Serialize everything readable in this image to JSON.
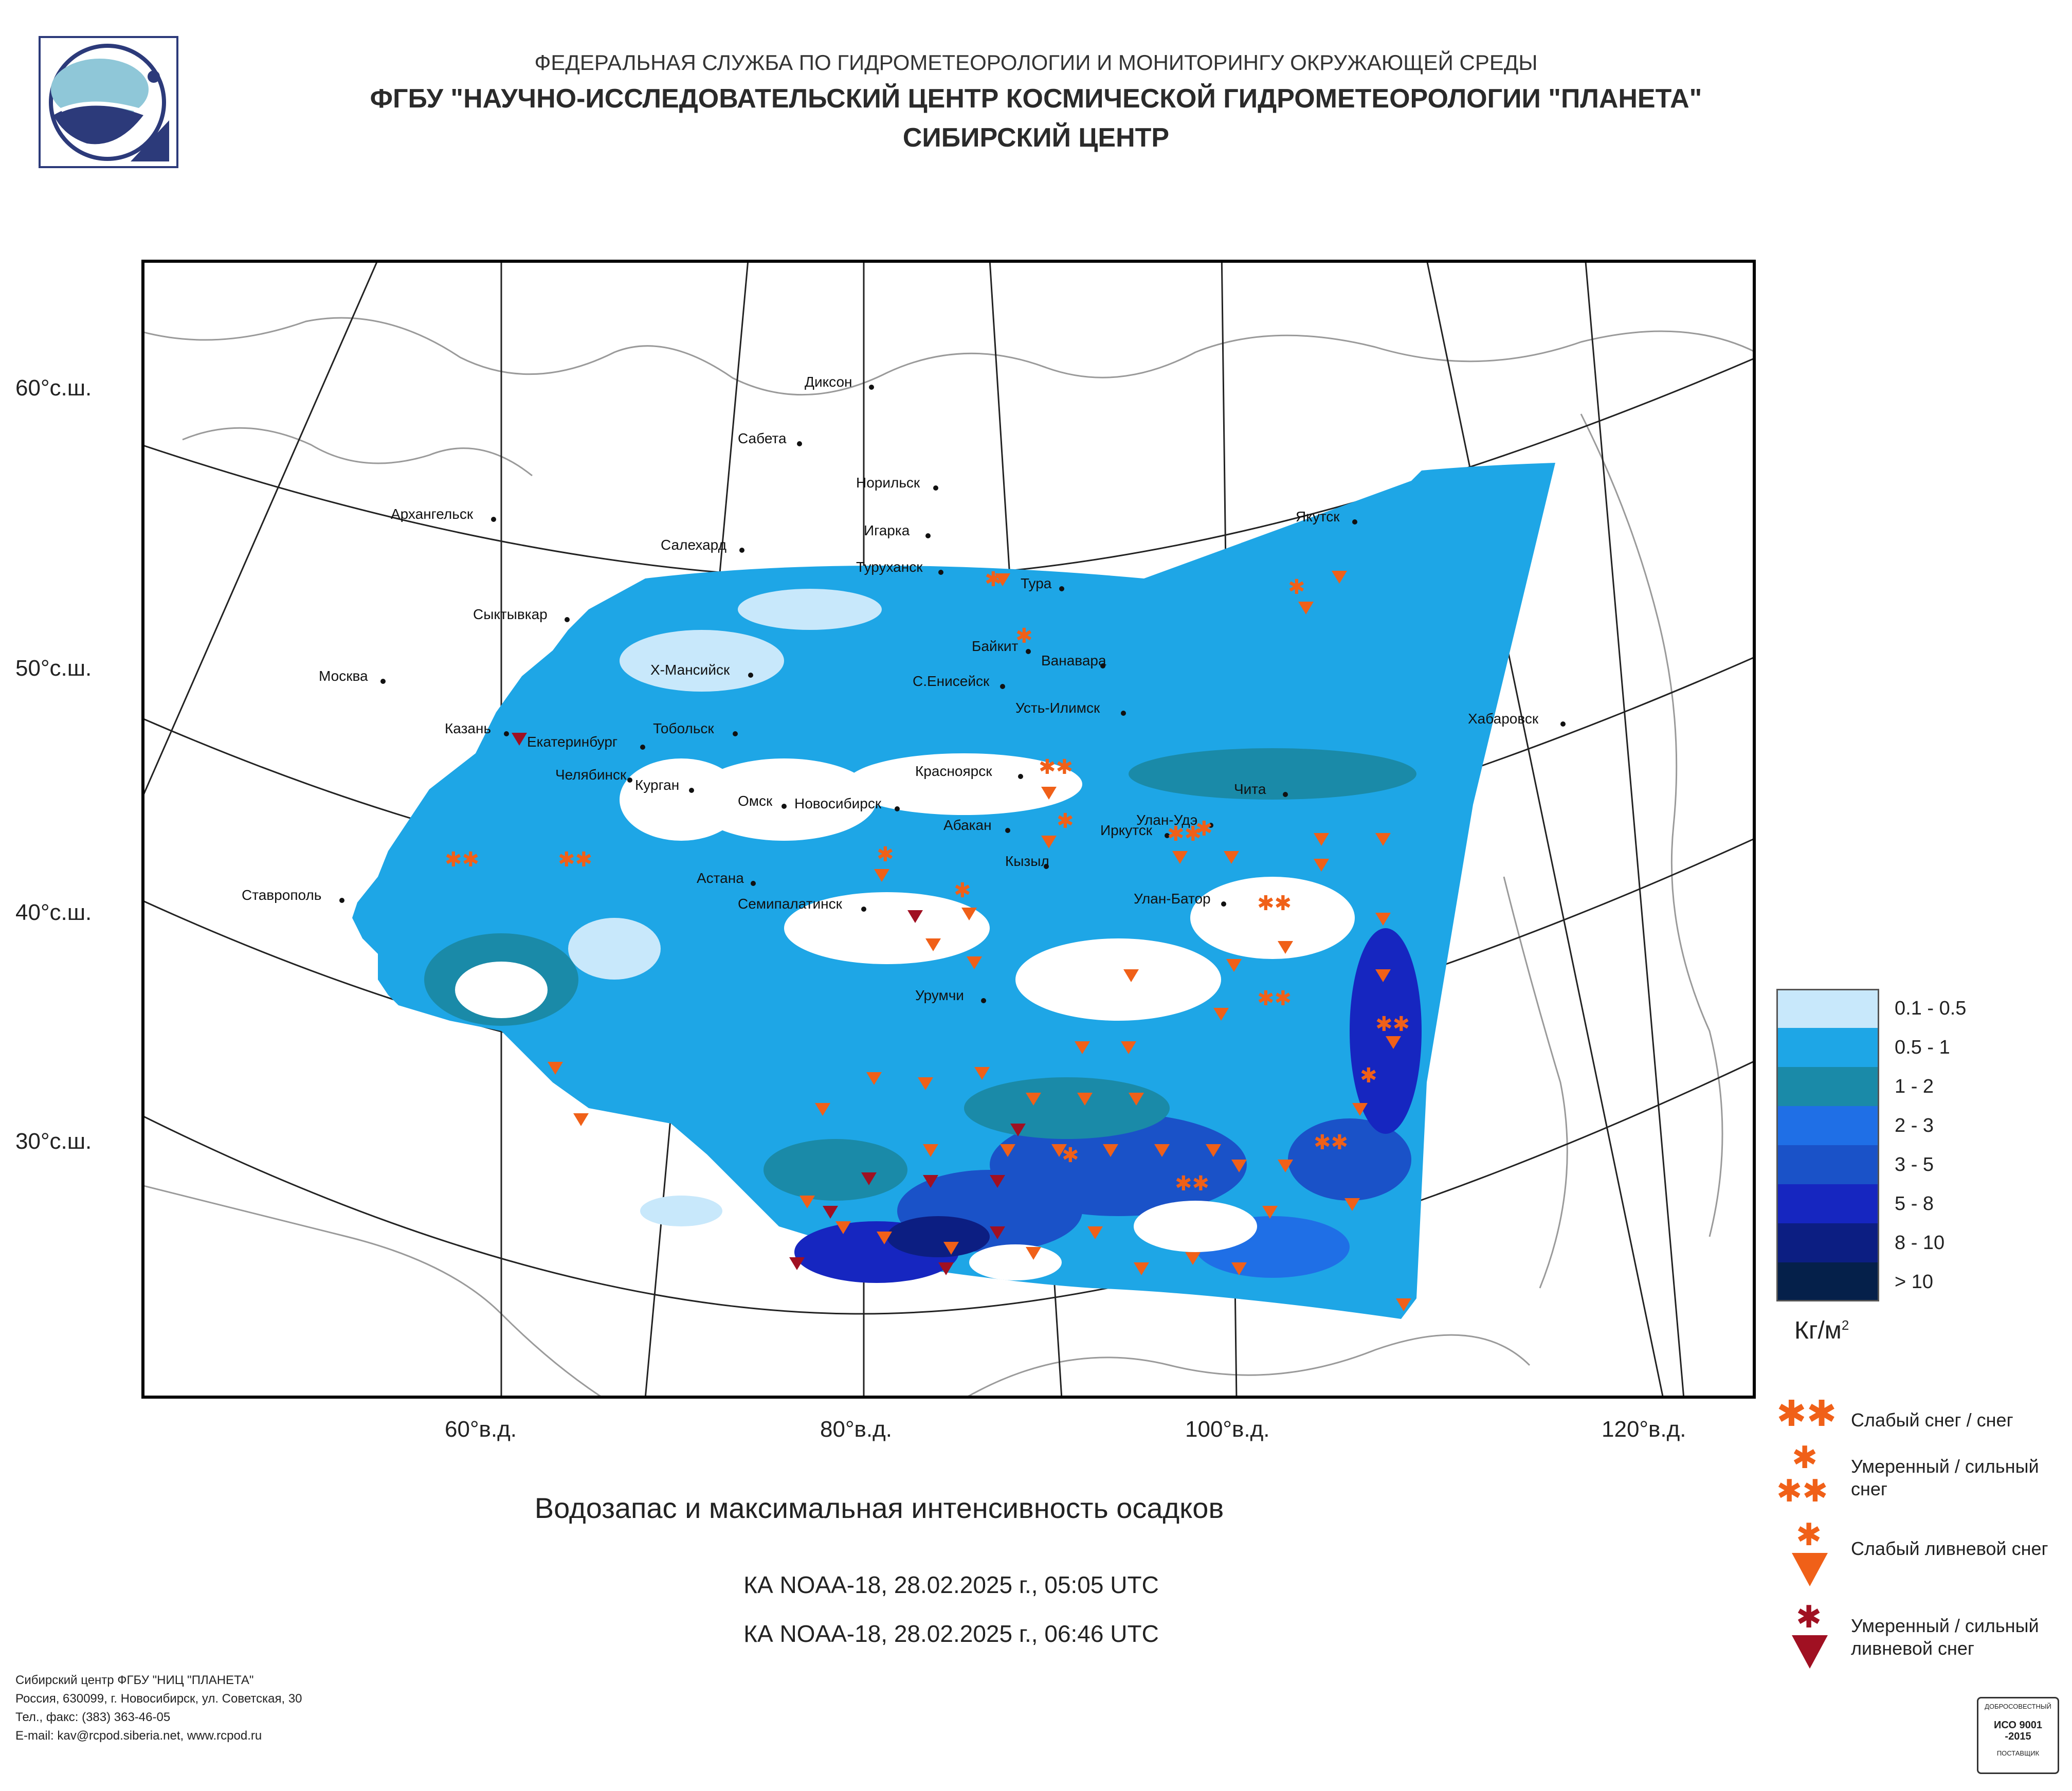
{
  "header": {
    "line1": "ФЕДЕРАЛЬНАЯ СЛУЖБА ПО ГИДРОМЕТЕОРОЛОГИИ И МОНИТОРИНГУ ОКРУЖАЮЩЕЙ СРЕДЫ",
    "line2": "ФГБУ \"НАУЧНО-ИССЛЕДОВАТЕЛЬСКИЙ ЦЕНТР КОСМИЧЕСКОЙ ГИДРОМЕТЕОРОЛОГИИ \"ПЛАНЕТА\"",
    "line3": "СИБИРСКИЙ ЦЕНТР"
  },
  "map": {
    "lat_labels": [
      "60°с.ш.",
      "50°с.ш.",
      "40°с.ш.",
      "30°с.ш."
    ],
    "lon_labels": [
      "60°в.д.",
      "80°в.д.",
      "100°в.д.",
      "120°в.д."
    ],
    "cities": [
      "Диксон",
      "Сабета",
      "Норильск",
      "Игарка",
      "Архангельск",
      "Салехард",
      "Туруханск",
      "Тура",
      "Якутск",
      "Сыктывкар",
      "Байкит",
      "Ванавара",
      "Москва",
      "Х-Мансийск",
      "С.Енисейск",
      "Усть-Илимск",
      "Казань",
      "Тобольск",
      "Хабаровск",
      "Екатеринбург",
      "Красноярск",
      "Челябинск",
      "Курган",
      "Омск",
      "Новосибирск",
      "Чита",
      "Абакан",
      "Улан-Удэ",
      "Иркутск",
      "Астана",
      "Кызыл",
      "Ставрополь",
      "Семипалатинск",
      "Улан-Батор",
      "Урумчи"
    ]
  },
  "title": "Водозапас и максимальная интенсивность осадков",
  "passes": [
    "КА NOAA-18, 28.02.2025 г., 05:05 UTC",
    "КА NOAA-18, 28.02.2025 г., 06:46 UTC"
  ],
  "legend": {
    "items": [
      {
        "label": "0.1 - 0.5",
        "color": "#c8e8fb"
      },
      {
        "label": "0.5 - 1",
        "color": "#1ea6e6"
      },
      {
        "label": "1 - 2",
        "color": "#1a8aa8"
      },
      {
        "label": "2 - 3",
        "color": "#1f6fe6"
      },
      {
        "label": "3 - 5",
        "color": "#1a52c8"
      },
      {
        "label": "5 - 8",
        "color": "#1626c0"
      },
      {
        "label": "8 - 10",
        "color": "#0c1e82"
      },
      {
        "label": "> 10",
        "color": "#05204a"
      }
    ],
    "units": "Кг/м",
    "units_sup": "2"
  },
  "symbols": [
    {
      "label": "Слабый снег / снег",
      "icon": "two-asterisks-orange",
      "color": "#f06018"
    },
    {
      "label": "Умеренный / сильный снег",
      "icon": "three-asterisks-orange",
      "color": "#f06018"
    },
    {
      "label": "Слабый ливневой снег",
      "icon": "asterisk-triangle-orange",
      "color": "#f06018"
    },
    {
      "label": "Умеренный / сильный ливневой снег",
      "icon": "asterisk-triangle-darkred",
      "color": "#a01022"
    }
  ],
  "footer": [
    "Сибирский центр ФГБУ \"НИЦ \"ПЛАНЕТА\"",
    "Россия, 630099, г. Новосибирск, ул. Советская, 30",
    "Тел., факс: (383) 363-46-05",
    "E-mail: kav@rcpod.siberia.net, www.rcpod.ru"
  ],
  "certificate": {
    "top": "ДОБРОСОВЕСТНЫЙ",
    "mid": "ИСО 9001 -2015",
    "bottom": "ПОСТАВЩИК"
  }
}
